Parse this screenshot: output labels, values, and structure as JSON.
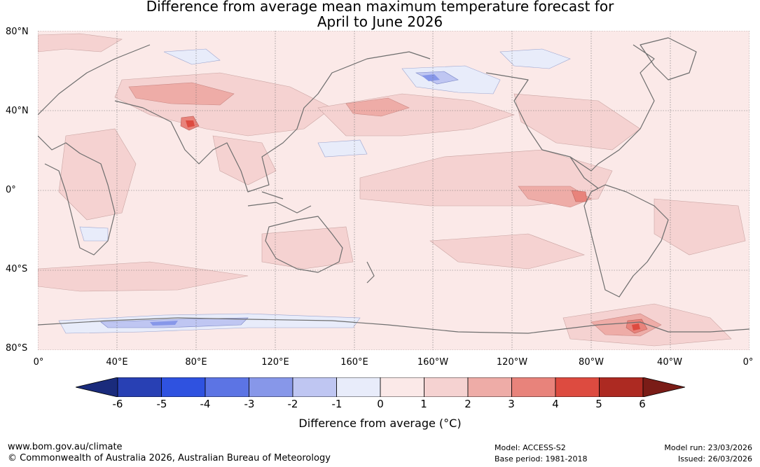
{
  "title": {
    "line1": "Difference from average mean maximum temperature forecast for",
    "line2": "April to June 2026"
  },
  "map": {
    "lat_labels": [
      "80°N",
      "40°N",
      "0°",
      "40°S",
      "80°S"
    ],
    "lon_labels": [
      "0°",
      "40°E",
      "80°E",
      "120°E",
      "160°E",
      "160°W",
      "120°W",
      "80°W",
      "40°W",
      "0°"
    ],
    "lat_lines": [
      80,
      40,
      0,
      -40,
      -80
    ],
    "lon_lines": [
      0,
      40,
      80,
      120,
      160,
      200,
      240,
      280,
      320,
      360
    ],
    "lat_range": [
      -80,
      80
    ],
    "lon_range": [
      0,
      360
    ],
    "background_color": "#fbe9e8",
    "anomaly_regions": [
      {
        "region": "Central Asia / Tibet",
        "value": 2
      },
      {
        "region": "Tibetan plateau hotspot",
        "value": 4
      },
      {
        "region": "Northwest Pacific",
        "value": 2
      },
      {
        "region": "Equatorial east Pacific",
        "value": 2
      },
      {
        "region": "Off Ecuador coast",
        "value": 3
      },
      {
        "region": "Bering Sea / Alaska",
        "value": -1
      },
      {
        "region": "Southern Ocean 80°E–150°E",
        "value": -1
      },
      {
        "region": "Weddell Sea",
        "value": 4
      }
    ]
  },
  "colorbar": {
    "ticks": [
      "-6",
      "-5",
      "-4",
      "-3",
      "-2",
      "-1",
      "0",
      "1",
      "2",
      "3",
      "4",
      "5",
      "6"
    ],
    "colors": [
      "#1a2b7c",
      "#2840b4",
      "#2f52e0",
      "#5c74e4",
      "#8797e9",
      "#bfc6f2",
      "#e8ecfa",
      "#fbe9e8",
      "#f5d2d1",
      "#eeaca7",
      "#e8837b",
      "#dd4b40",
      "#ad2a22",
      "#7a1c17"
    ],
    "label": "Difference from average (°C)"
  },
  "footer": {
    "url": "www.bom.gov.au/climate",
    "copyright": "© Commonwealth of Australia 2026, Australian Bureau of Meteorology",
    "model": "Model: ACCESS-S2",
    "base_period": "Base period: 1981-2018",
    "model_run": "Model run: 23/03/2026",
    "issued": "Issued: 26/03/2026"
  }
}
